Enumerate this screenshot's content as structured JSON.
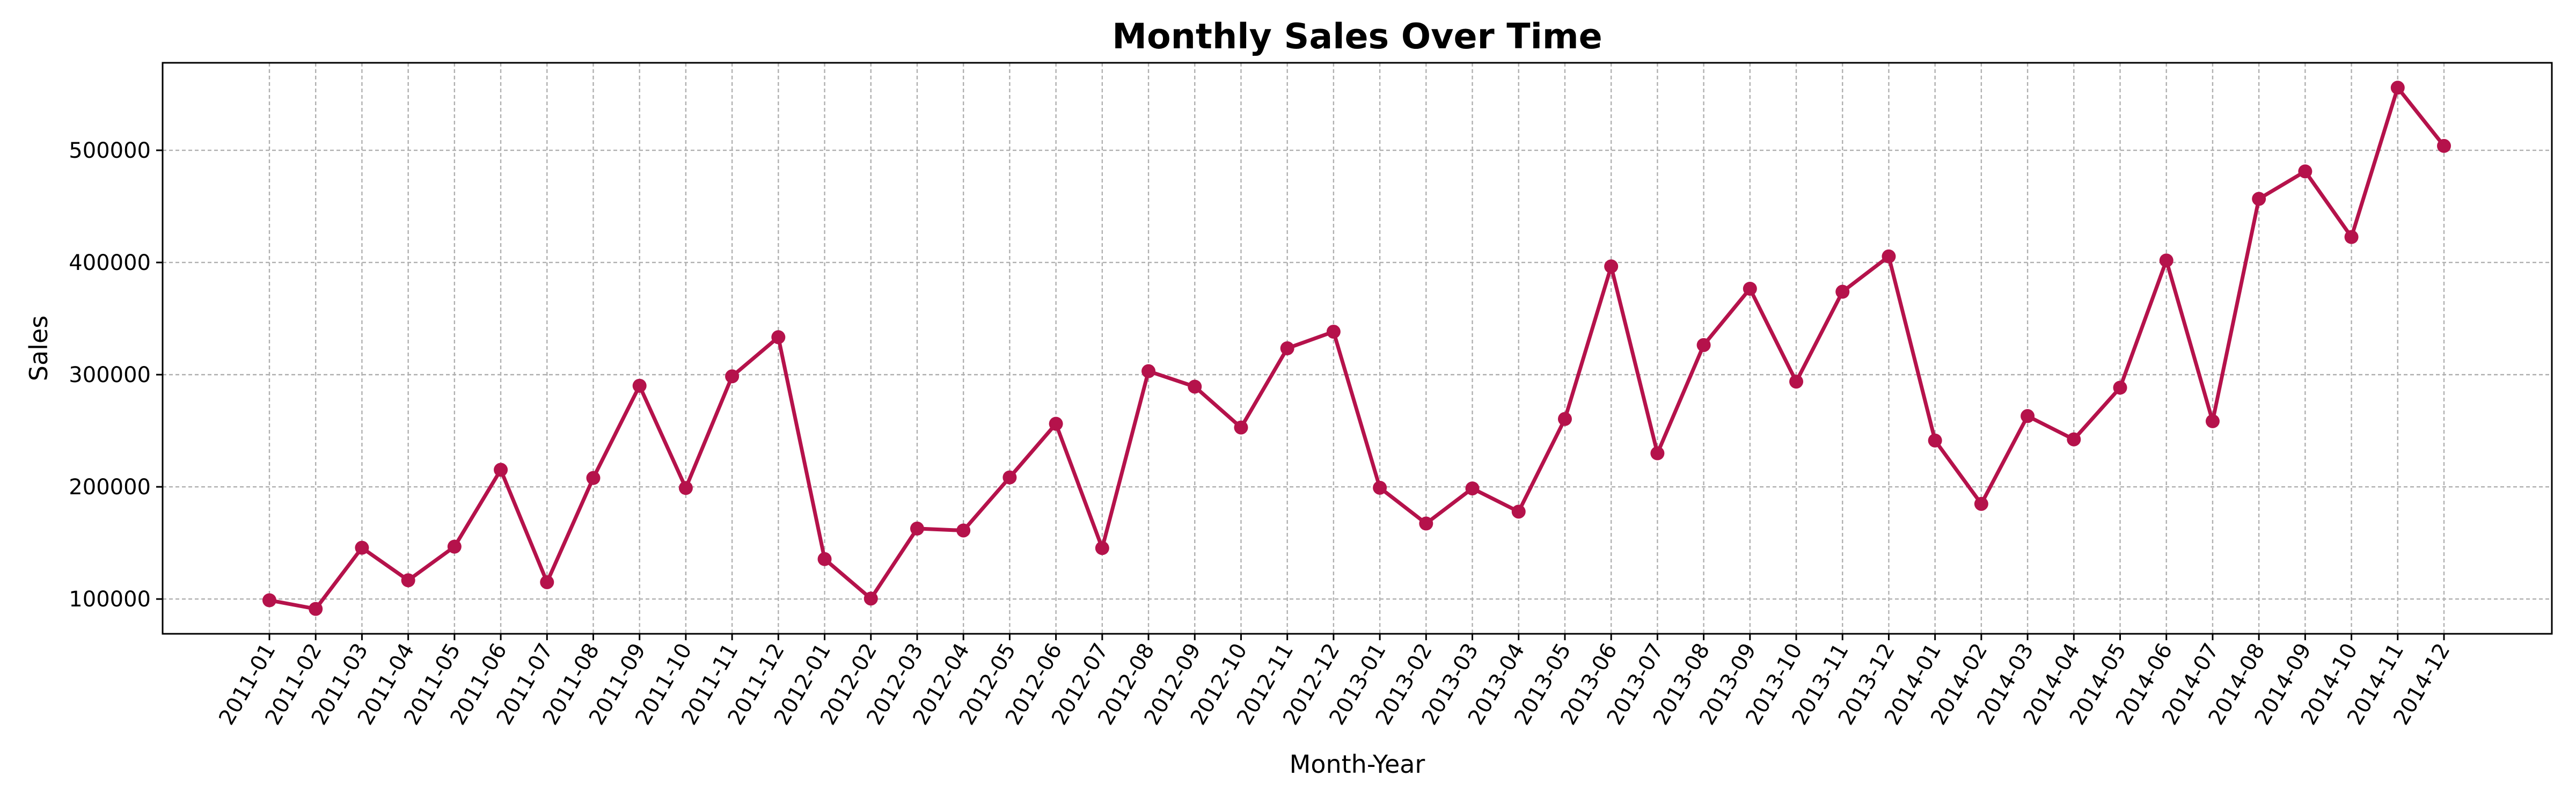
{
  "chart_data": {
    "type": "line",
    "title": "Monthly Sales Over Time",
    "xlabel": "Month-Year",
    "ylabel": "Sales",
    "ylim": [
      69000,
      578000
    ],
    "yticks": [
      100000,
      200000,
      300000,
      400000,
      500000
    ],
    "grid": true,
    "line_color": "#b5124b",
    "categories": [
      "2011-01",
      "2011-02",
      "2011-03",
      "2011-04",
      "2011-05",
      "2011-06",
      "2011-07",
      "2011-08",
      "2011-09",
      "2011-10",
      "2011-11",
      "2011-12",
      "2012-01",
      "2012-02",
      "2012-03",
      "2012-04",
      "2012-05",
      "2012-06",
      "2012-07",
      "2012-08",
      "2012-09",
      "2012-10",
      "2012-11",
      "2012-12",
      "2013-01",
      "2013-02",
      "2013-03",
      "2013-04",
      "2013-05",
      "2013-06",
      "2013-07",
      "2013-08",
      "2013-09",
      "2013-10",
      "2013-11",
      "2013-12",
      "2014-01",
      "2014-02",
      "2014-03",
      "2014-04",
      "2014-05",
      "2014-06",
      "2014-07",
      "2014-08",
      "2014-09",
      "2014-10",
      "2014-11",
      "2014-12"
    ],
    "series": [
      {
        "values": [
          98900,
          91200,
          145700,
          116700,
          146700,
          215200,
          115000,
          207900,
          290100,
          199000,
          298500,
          333400,
          135600,
          100400,
          162800,
          161100,
          208400,
          256200,
          145400,
          303100,
          289300,
          252900,
          323500,
          338300,
          199200,
          167300,
          198600,
          177900,
          260500,
          396500,
          229900,
          326400,
          376600,
          293800,
          373900,
          405400,
          241300,
          184800,
          263100,
          242300,
          288400,
          401800,
          258500,
          456700,
          481200,
          422700,
          555800,
          503900
        ]
      }
    ]
  }
}
